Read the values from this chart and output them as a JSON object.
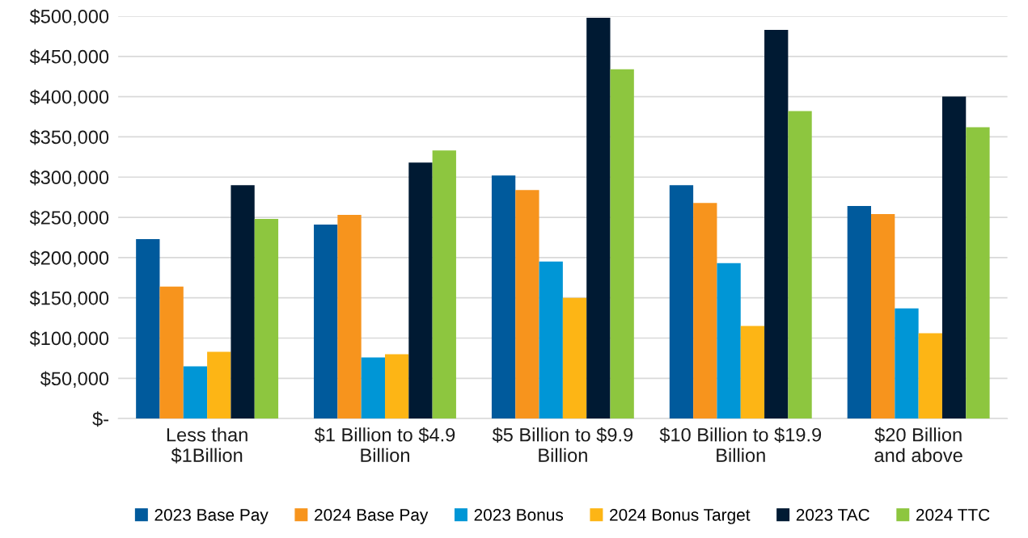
{
  "chart_data": {
    "type": "bar",
    "categories": [
      "Less than\n$1Billion",
      "$1 Billion to $4.9\nBillion",
      "$5 Billion to $9.9\nBillion",
      "$10 Billion to $19.9\nBillion",
      "$20 Billion\nand above"
    ],
    "series": [
      {
        "name": "2023 Base Pay",
        "color": "#005a9c",
        "values": [
          223000,
          241000,
          302000,
          290000,
          264000
        ]
      },
      {
        "name": "2024 Base Pay",
        "color": "#f7941d",
        "values": [
          164000,
          253000,
          284000,
          268000,
          254000
        ]
      },
      {
        "name": "2023 Bonus",
        "color": "#0096d6",
        "values": [
          65000,
          76000,
          195000,
          193000,
          137000
        ]
      },
      {
        "name": "2024 Bonus Target",
        "color": "#fdb515",
        "values": [
          83000,
          80000,
          150000,
          115000,
          106000
        ]
      },
      {
        "name": "2023 TAC",
        "color": "#001a33",
        "values": [
          290000,
          318000,
          498000,
          483000,
          400000
        ]
      },
      {
        "name": "2024 TTC",
        "color": "#8dc63f",
        "values": [
          248000,
          333000,
          434000,
          382000,
          362000
        ]
      }
    ],
    "ylim": [
      0,
      500000
    ],
    "yticks": [
      {
        "value": 0,
        "label": "$-"
      },
      {
        "value": 50000,
        "label": "$50,000"
      },
      {
        "value": 100000,
        "label": "$100,000"
      },
      {
        "value": 150000,
        "label": "$150,000"
      },
      {
        "value": 200000,
        "label": "$200,000"
      },
      {
        "value": 250000,
        "label": "$250,000"
      },
      {
        "value": 300000,
        "label": "$300,000"
      },
      {
        "value": 350000,
        "label": "$350,000"
      },
      {
        "value": 400000,
        "label": "$400,000"
      },
      {
        "value": 450000,
        "label": "$450,000"
      },
      {
        "value": 500000,
        "label": "$500,000"
      }
    ],
    "grid": "y",
    "legend": "bottom"
  }
}
